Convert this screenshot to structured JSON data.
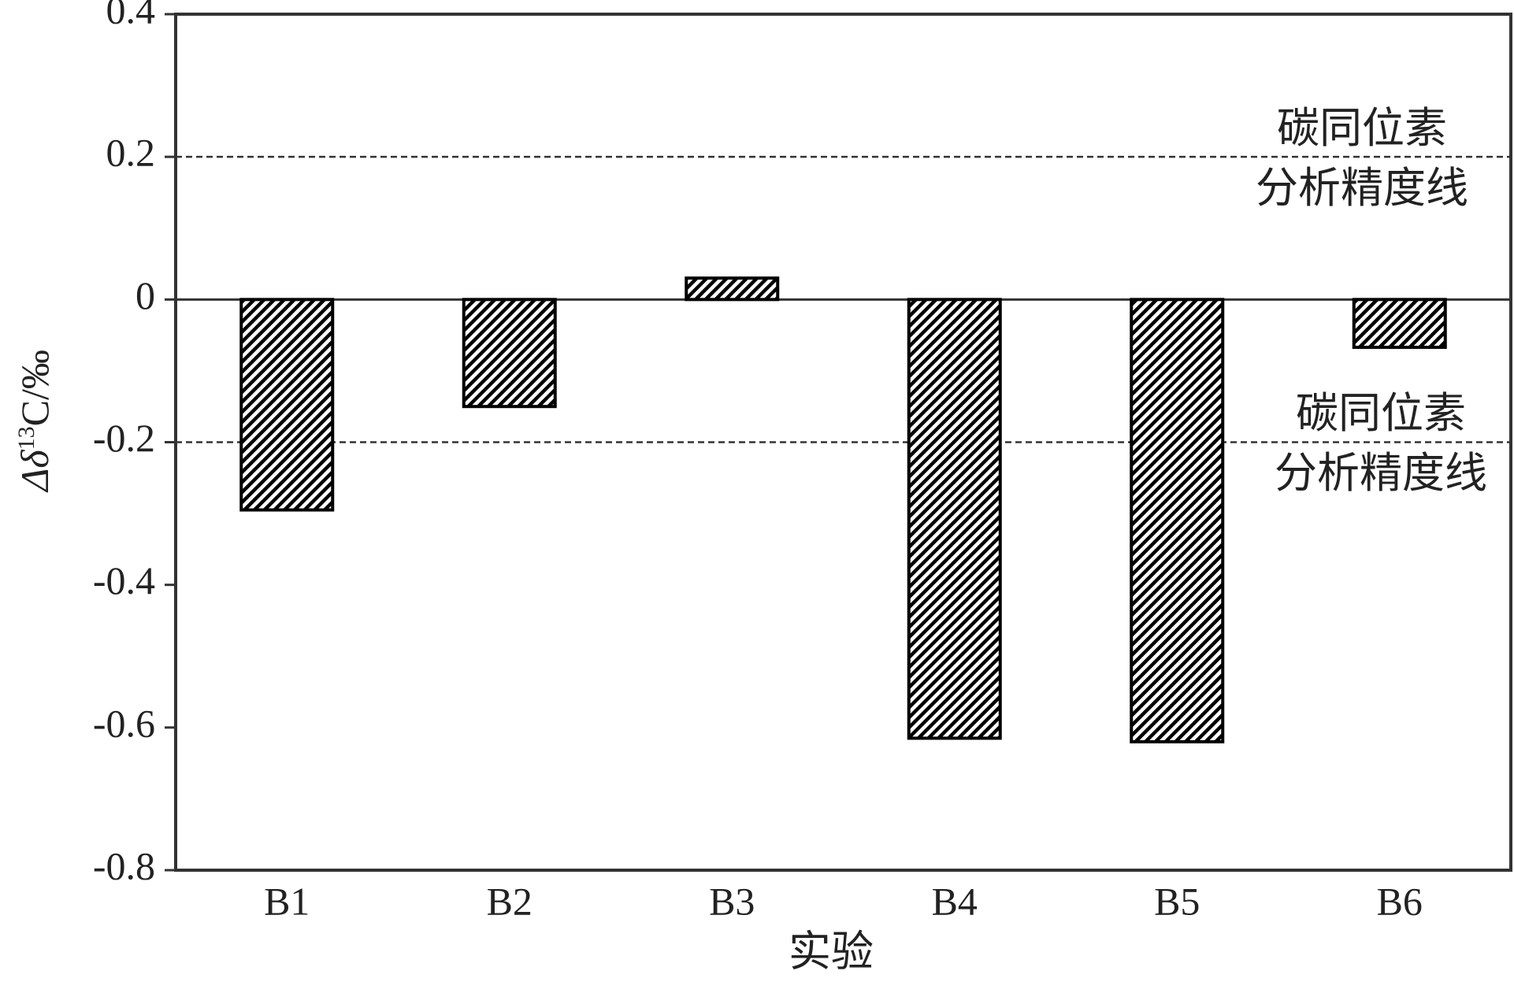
{
  "chart_data": {
    "type": "bar",
    "y_label": {
      "prefix": "Δδ",
      "sup": "13",
      "suffix": "C/‰"
    },
    "x_label": "实验",
    "categories": [
      "B1",
      "B2",
      "B3",
      "B4",
      "B5",
      "B6"
    ],
    "values": [
      -0.295,
      -0.15,
      0.03,
      -0.615,
      -0.62,
      -0.067
    ],
    "color": "#000000",
    "ylim": [
      -0.8,
      0.4
    ],
    "yticks": [
      -0.8,
      -0.6,
      -0.4,
      -0.2,
      0,
      0.2,
      0.4
    ],
    "annotations": [
      {
        "y": 0.2,
        "lines": [
          "碳同位素",
          "分析精度线"
        ]
      },
      {
        "y": -0.2,
        "lines": [
          "碳同位素",
          "分析精度线"
        ]
      }
    ]
  }
}
